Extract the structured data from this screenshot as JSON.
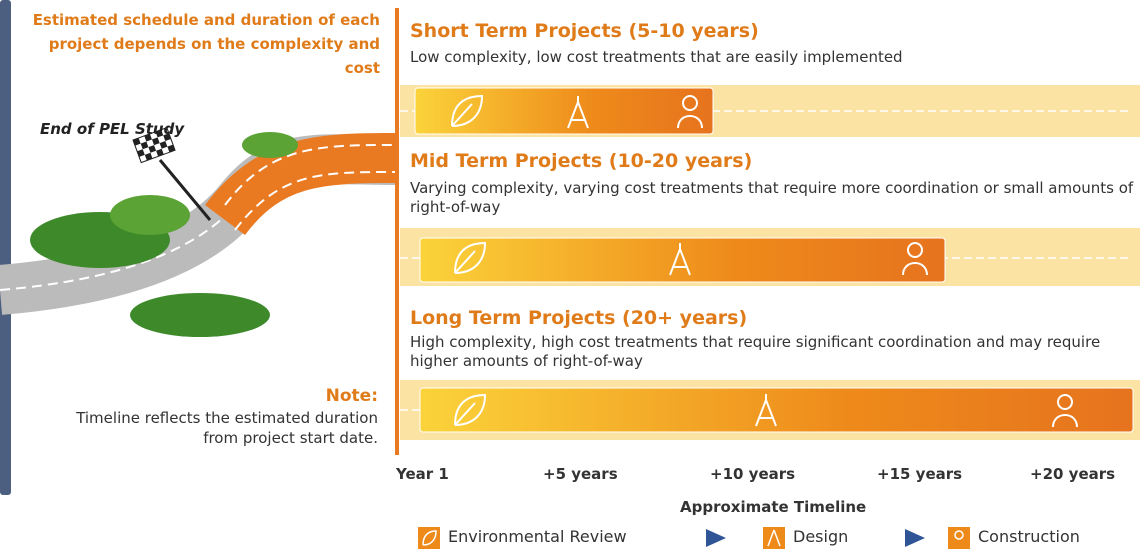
{
  "sidebar": {
    "schedule_note": "Estimated schedule and duration of each project depends on the complexity and cost",
    "milestone": "End of PEL Study",
    "note_title": "Note:",
    "note_text": "Timeline reflects the estimated duration from project start date."
  },
  "projects": [
    {
      "title": "Short Term Projects (5-10 years)",
      "description": "Low complexity, low cost treatments that are easily implemented"
    },
    {
      "title": "Mid Term Projects (10-20 years)",
      "description": "Varying complexity, varying cost treatments that require more coordination or small amounts of right-of-way"
    },
    {
      "title": "Long Term Projects (20+ years)",
      "description": "High complexity, high cost treatments that require significant coordination and may require higher amounts of right-of-way"
    }
  ],
  "timeline": {
    "labels": [
      "Year 1",
      "+5 years",
      "+10 years",
      "+15 years",
      "+20 years"
    ],
    "title": "Approximate Timeline"
  },
  "legend": [
    "Environmental Review",
    "Design",
    "Construction"
  ]
}
